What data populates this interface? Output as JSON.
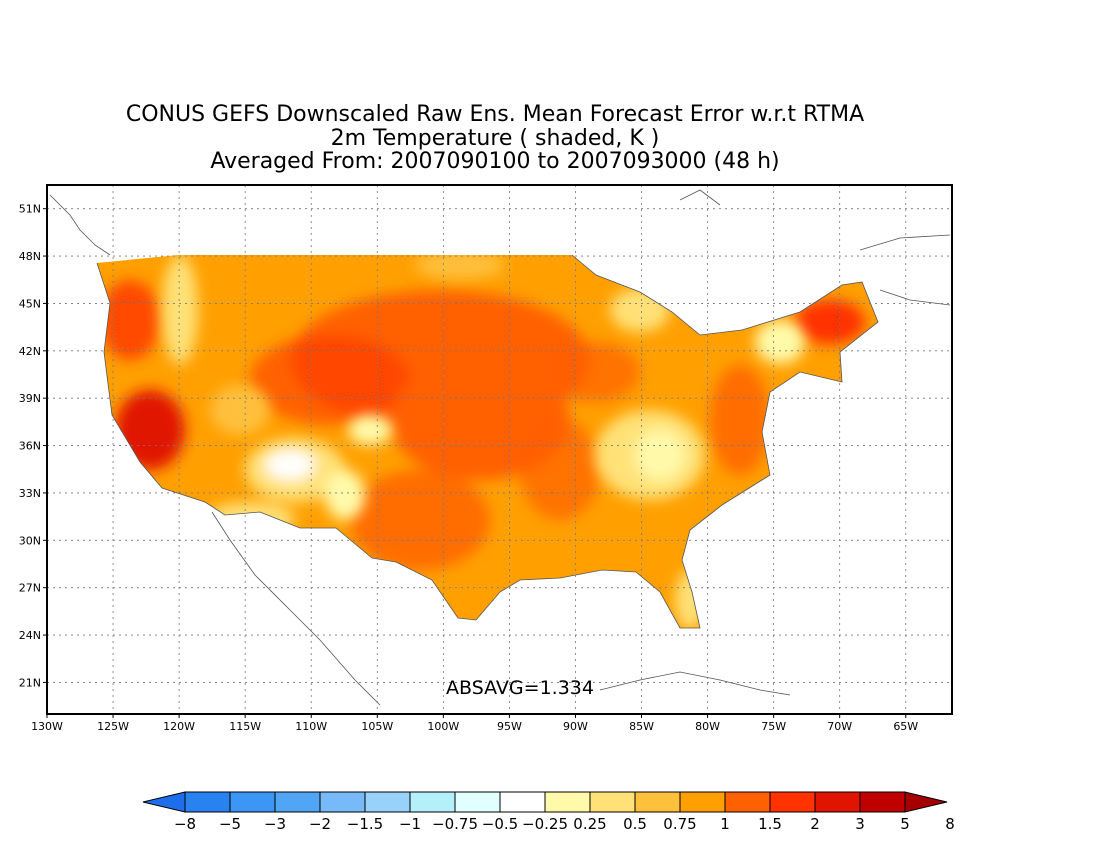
{
  "title": {
    "line1": "CONUS GEFS Downscaled Raw Ens. Mean Forecast Error w.r.t RTMA",
    "line2": "2m Temperature ( shaded, K )",
    "line3": "Averaged From: 2007090100 to 2007093000 (48 h)"
  },
  "annotation": "ABSAVG=1.334",
  "map": {
    "lon_range": [
      -130,
      -61.5
    ],
    "lat_range": [
      19,
      52.5
    ],
    "grid": true,
    "lat_ticks": [
      "51N",
      "48N",
      "45N",
      "42N",
      "39N",
      "36N",
      "33N",
      "30N",
      "27N",
      "24N",
      "21N"
    ],
    "lon_ticks": [
      "130W",
      "125W",
      "120W",
      "115W",
      "110W",
      "105W",
      "100W",
      "95W",
      "90W",
      "85W",
      "80W",
      "75W",
      "70W",
      "65W"
    ]
  },
  "colorbar": {
    "labels": [
      "-8",
      "-5",
      "-3",
      "-2",
      "-1.5",
      "-1",
      "-0.75",
      "-0.5",
      "-0.25",
      "0.25",
      "0.5",
      "0.75",
      "1",
      "1.5",
      "2",
      "3",
      "5",
      "8"
    ],
    "colors": [
      "#1e6eeb",
      "#2882f0",
      "#3c96f5",
      "#50a5f5",
      "#78b9fa",
      "#96d2fa",
      "#b4f0fa",
      "#e1ffff",
      "#ffffff",
      "#fffaaa",
      "#ffe178",
      "#ffc03c",
      "#ffa000",
      "#ff6000",
      "#ff3200",
      "#e11400",
      "#c00000",
      "#a50000"
    ]
  }
}
